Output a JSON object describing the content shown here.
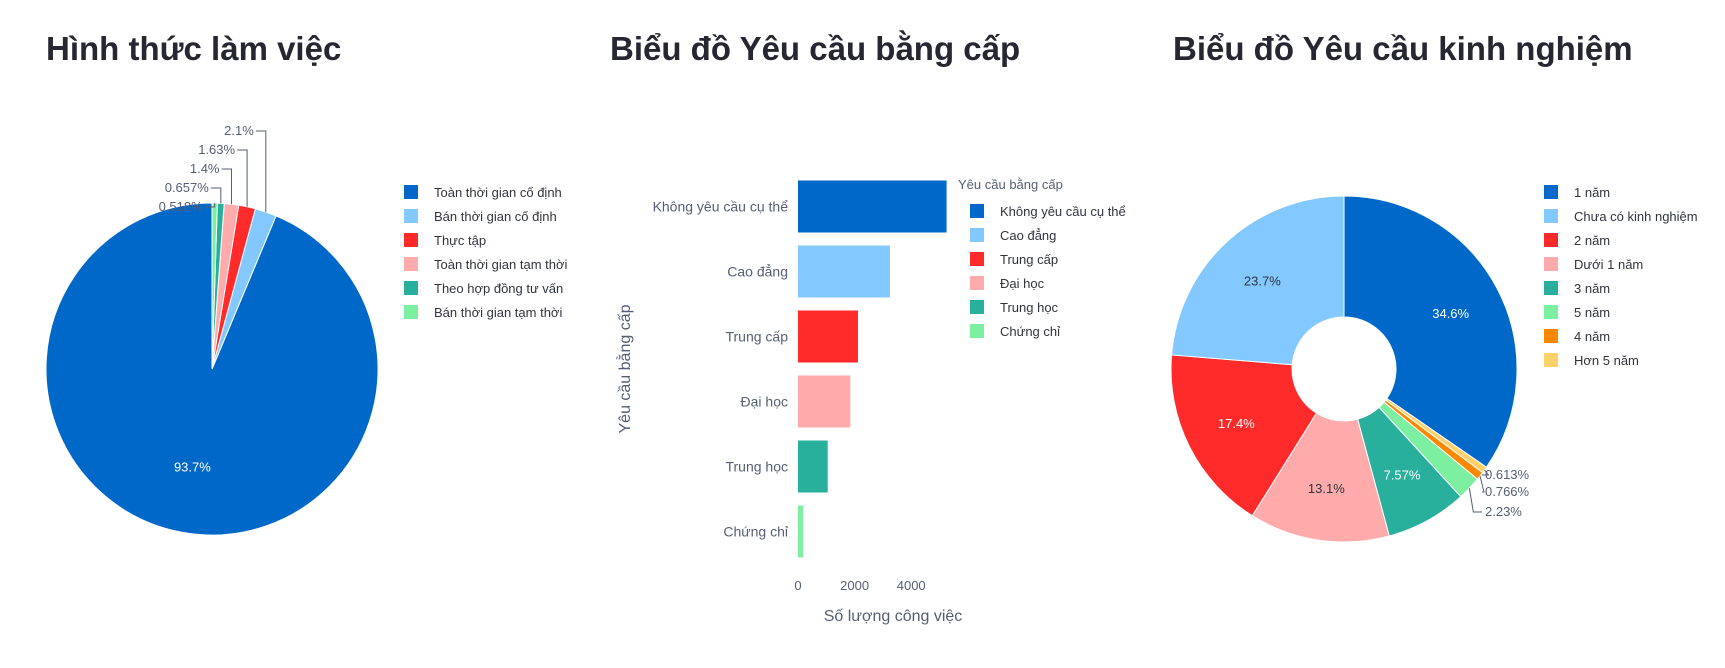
{
  "chart_data": [
    {
      "type": "pie",
      "title": "Hình thức làm việc",
      "slices": [
        {
          "label": "Toàn thời gian cố định",
          "value": 93.7,
          "text": "93.7%",
          "color": "#0068c9"
        },
        {
          "label": "Bán thời gian cố định",
          "value": 2.1,
          "text": "2.1%",
          "color": "#83c9ff"
        },
        {
          "label": "Thực tập",
          "value": 1.63,
          "text": "1.63%",
          "color": "#ff2b2b"
        },
        {
          "label": "Toàn thời gian tạm thời",
          "value": 1.4,
          "text": "1.4%",
          "color": "#ffabab"
        },
        {
          "label": "Theo hợp đồng tư vấn",
          "value": 0.657,
          "text": "0.657%",
          "color": "#29b09d"
        },
        {
          "label": "Bán thời gian tạm thời",
          "value": 0.518,
          "text": "0.518%",
          "color": "#7defa1"
        }
      ],
      "legend_position": "right"
    },
    {
      "type": "bar",
      "orientation": "horizontal",
      "title": "Biểu đồ Yêu cầu bằng cấp",
      "xlabel": "Số lượng công việc",
      "ylabel": "Yêu cầu bằng cấp",
      "legend_title": "Yêu cầu bằng cấp",
      "legend_position": "right",
      "xlim": [
        0,
        5300
      ],
      "xticks": [
        0,
        2000,
        4000
      ],
      "tick_labels": [
        "0",
        "2000",
        "4000"
      ],
      "categories": [
        "Không yêu cầu cụ thể",
        "Cao đẳng",
        "Trung cấp",
        "Đại học",
        "Trung học",
        "Chứng chỉ"
      ],
      "values": [
        5250,
        3250,
        2120,
        1850,
        1050,
        180
      ],
      "colors": [
        "#0068c9",
        "#83c9ff",
        "#ff2b2b",
        "#ffabab",
        "#29b09d",
        "#7defa1"
      ]
    },
    {
      "type": "pie",
      "title": "Biểu đồ Yêu cầu kinh nghiệm",
      "hole": 0.3,
      "slices": [
        {
          "label": "1 năm",
          "value": 34.6,
          "text": "34.6%",
          "color": "#0068c9"
        },
        {
          "label": "Hơn 5 năm",
          "value": 0.613,
          "text": "0.613%",
          "color": "#ffd16a"
        },
        {
          "label": "4 năm",
          "value": 0.766,
          "text": "0.766%",
          "color": "#ff8700"
        },
        {
          "label": "5 năm",
          "value": 2.23,
          "text": "2.23%",
          "color": "#7defa1"
        },
        {
          "label": "3 năm",
          "value": 7.57,
          "text": "7.57%",
          "color": "#29b09d"
        },
        {
          "label": "Dưới 1 năm",
          "value": 13.1,
          "text": "13.1%",
          "color": "#ffabab"
        },
        {
          "label": "2 năm",
          "value": 17.4,
          "text": "17.4%",
          "color": "#ff2b2b"
        },
        {
          "label": "Chưa có kinh nghiệm",
          "value": 23.7,
          "text": "23.7%",
          "color": "#83c9ff"
        }
      ],
      "legend": [
        {
          "label": "1 năm",
          "color": "#0068c9"
        },
        {
          "label": "Chưa có kinh nghiệm",
          "color": "#83c9ff"
        },
        {
          "label": "2 năm",
          "color": "#ff2b2b"
        },
        {
          "label": "Dưới 1 năm",
          "color": "#ffabab"
        },
        {
          "label": "3 năm",
          "color": "#29b09d"
        },
        {
          "label": "5 năm",
          "color": "#7defa1"
        },
        {
          "label": "4 năm",
          "color": "#ff8700"
        },
        {
          "label": "Hơn 5 năm",
          "color": "#ffd16a"
        }
      ],
      "legend_position": "right"
    }
  ]
}
